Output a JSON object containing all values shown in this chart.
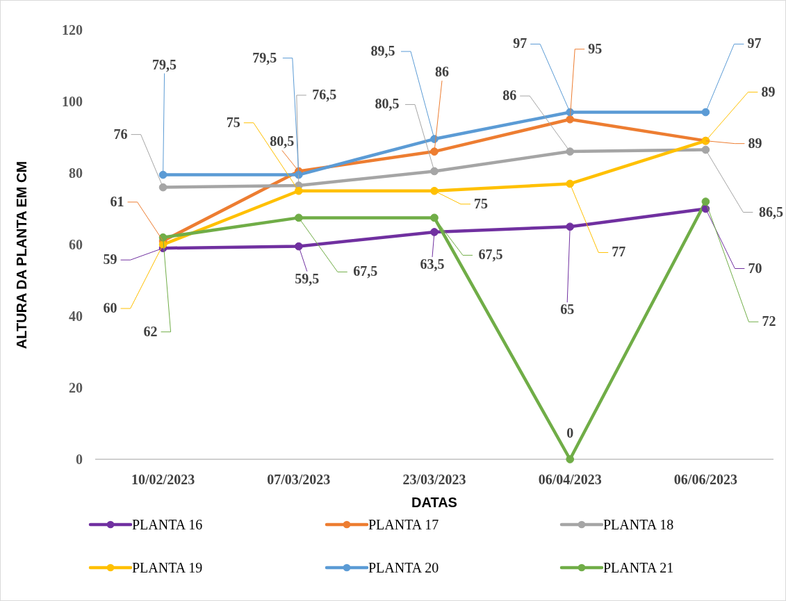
{
  "chart_data": {
    "type": "line",
    "xlabel": "DATAS",
    "ylabel": "ALTURA DA PLANTA EM CM",
    "categories": [
      "10/02/2023",
      "07/03/2023",
      "23/03/2023",
      "06/04/2023",
      "06/06/2023"
    ],
    "ylim": [
      0,
      120
    ],
    "yticks": [
      0,
      20,
      40,
      60,
      80,
      100,
      120
    ],
    "grid": false,
    "legend": "bottom",
    "marker": "circle",
    "line_style": "solid",
    "series": [
      {
        "name": "PLANTA 16",
        "color": "#7030a0",
        "values": [
          59,
          59.5,
          63.5,
          65,
          70
        ],
        "value_labels": [
          "59",
          "59,5",
          "63,5",
          "65",
          "70"
        ]
      },
      {
        "name": "PLANTA 17",
        "color": "#ed7d31",
        "values": [
          61,
          80.5,
          86,
          95,
          89
        ],
        "value_labels": [
          "61",
          "80,5",
          "86",
          "95",
          "89"
        ]
      },
      {
        "name": "PLANTA 18",
        "color": "#a5a5a5",
        "values": [
          76,
          76.5,
          80.5,
          86,
          86.5
        ],
        "value_labels": [
          "76",
          "76,5",
          "80,5",
          "86",
          "86,5"
        ]
      },
      {
        "name": "PLANTA 19",
        "color": "#ffc000",
        "values": [
          60,
          75,
          75,
          77,
          89
        ],
        "value_labels": [
          "60",
          "75",
          "75",
          "77",
          "89"
        ]
      },
      {
        "name": "PLANTA 20",
        "color": "#5b9bd5",
        "values": [
          79.5,
          79.5,
          89.5,
          97,
          97
        ],
        "value_labels": [
          "79,5",
          "79,5",
          "89,5",
          "97",
          "97"
        ]
      },
      {
        "name": "PLANTA 21",
        "color": "#70ad47",
        "values": [
          62,
          67.5,
          67.5,
          0,
          72
        ],
        "value_labels": [
          "62",
          "67,5",
          "67,5",
          "0",
          "72"
        ]
      }
    ]
  }
}
